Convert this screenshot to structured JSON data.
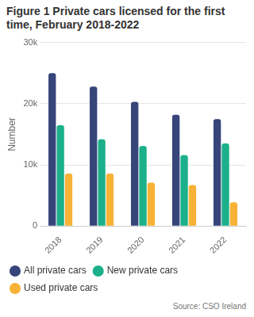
{
  "chart_data": {
    "type": "bar",
    "title": "Figure 1 Private cars licensed for the first time, February 2018-2022",
    "y_label": "Number",
    "source": "Source: CSO Ireland",
    "categories": [
      "2018",
      "2019",
      "2020",
      "2021",
      "2022"
    ],
    "series": [
      {
        "name": "All private cars",
        "color": "#36457a",
        "values": [
          25000,
          22800,
          20300,
          18200,
          17500
        ]
      },
      {
        "name": "New private cars",
        "color": "#1bb08a",
        "values": [
          16500,
          14200,
          13100,
          11600,
          13500
        ]
      },
      {
        "name": "Used private cars",
        "color": "#f7b236",
        "values": [
          8600,
          8600,
          7100,
          6700,
          3900
        ]
      }
    ],
    "ylim": [
      0,
      30000
    ],
    "yticks": [
      0,
      {
        "value": 10000,
        "label": "10k"
      },
      {
        "value": 20000,
        "label": "20k"
      },
      {
        "value": 30000,
        "label": "30k"
      }
    ],
    "grid": true,
    "legend": "bottom"
  }
}
